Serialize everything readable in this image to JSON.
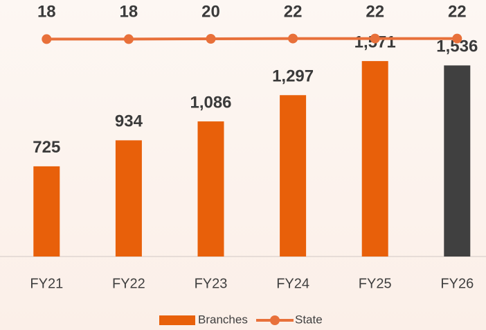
{
  "chart_data": {
    "type": "bar_line",
    "categories": [
      "FY21",
      "FY22",
      "FY23",
      "FY24",
      "FY25",
      "FY26"
    ],
    "ylim": [
      0,
      1800
    ],
    "y2lim": [
      0,
      300
    ],
    "series": [
      {
        "name": "Branches",
        "type": "bar",
        "color": "#e8600a",
        "colors": [
          "#e8600a",
          "#e8600a",
          "#e8600a",
          "#e8600a",
          "#e8600a",
          "#404040"
        ],
        "values": [
          725,
          934,
          1086,
          1297,
          1571,
          1536
        ],
        "value_labels": [
          "725",
          "934",
          "1,086",
          "1,297",
          "1,571",
          "1,536"
        ]
      },
      {
        "name": "State",
        "type": "line",
        "axis": "y2",
        "color": "#e8703a",
        "values": [
          18,
          18,
          20,
          22,
          22,
          22
        ]
      }
    ]
  }
}
